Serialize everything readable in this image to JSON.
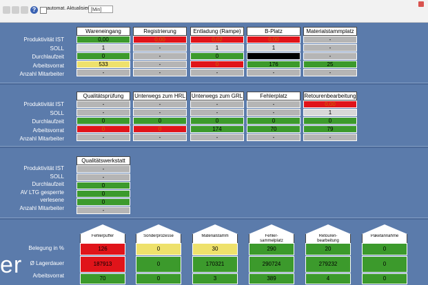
{
  "toolbar": {
    "auto_label": "automat. Aktualisierung",
    "interval_value": "[Min]"
  },
  "row_labels": {
    "section1": [
      "Produktivität IST",
      "SOLL",
      "Durchlaufzeit",
      "Arbeitsvorrat",
      "Anzahl Mitarbeiter"
    ],
    "section2": [
      "Produktivität IST",
      "SOLL",
      "Durchlaufzeit",
      "Arbeitsvorrat",
      "Anzahl Mitarbeiter"
    ],
    "section3": [
      "Produktivität IST",
      "SOLL",
      "Durchlaufzeit",
      "AV LTG gesperrte",
      "verlesene",
      "Anzahl Mitarbeiter"
    ],
    "section4": [
      "Belegung in %",
      "Ø Lagerdauer",
      "Arbeitsvorrat"
    ]
  },
  "section1": [
    {
      "title": "Wareneingang",
      "cells": [
        {
          "v": "0,00",
          "c": "green"
        },
        {
          "v": "1",
          "c": "lgray"
        },
        {
          "v": "0",
          "c": "green"
        },
        {
          "v": "533",
          "c": "yellow"
        },
        {
          "v": "-",
          "c": "gray"
        }
      ]
    },
    {
      "title": "Registrierung",
      "cells": [
        {
          "v": "0,00",
          "c": "red"
        },
        {
          "v": "-",
          "c": "gray"
        },
        {
          "v": "-",
          "c": "gray"
        },
        {
          "v": "-",
          "c": "gray"
        },
        {
          "v": "-",
          "c": "gray"
        }
      ]
    },
    {
      "title": "Entladung (Rampe)",
      "cells": [
        {
          "v": "0,02",
          "c": "red"
        },
        {
          "v": "1",
          "c": "lgray"
        },
        {
          "v": "0",
          "c": "green"
        },
        {
          "v": "0",
          "c": "red"
        },
        {
          "v": "-",
          "c": "gray"
        }
      ]
    },
    {
      "title": "B-Platz",
      "cells": [
        {
          "v": "0,00",
          "c": "red"
        },
        {
          "v": "1",
          "c": "lgray"
        },
        {
          "v": "",
          "c": "black"
        },
        {
          "v": "176",
          "c": "green"
        },
        {
          "v": "-",
          "c": "gray"
        }
      ]
    },
    {
      "title": "Materialstammplatz",
      "cells": [
        {
          "v": "-",
          "c": "gray"
        },
        {
          "v": "-",
          "c": "gray"
        },
        {
          "v": "-",
          "c": "gray"
        },
        {
          "v": "25",
          "c": "green"
        },
        {
          "v": "-",
          "c": "gray"
        }
      ]
    }
  ],
  "section2": [
    {
      "title": "Qualitätsprüfung",
      "cells": [
        {
          "v": "-",
          "c": "gray"
        },
        {
          "v": "-",
          "c": "gray"
        },
        {
          "v": "0",
          "c": "green"
        },
        {
          "v": "0",
          "c": "red"
        },
        {
          "v": "-",
          "c": "gray"
        }
      ]
    },
    {
      "title": "Unterwegs zum HRL",
      "cells": [
        {
          "v": "-",
          "c": "gray"
        },
        {
          "v": "-",
          "c": "gray"
        },
        {
          "v": "0",
          "c": "green"
        },
        {
          "v": "0",
          "c": "red"
        },
        {
          "v": "-",
          "c": "gray"
        }
      ]
    },
    {
      "title": "Unterwegs zum GRL",
      "cells": [
        {
          "v": "-",
          "c": "gray"
        },
        {
          "v": "-",
          "c": "gray"
        },
        {
          "v": "0",
          "c": "green"
        },
        {
          "v": "174",
          "c": "green"
        },
        {
          "v": "-",
          "c": "gray"
        }
      ]
    },
    {
      "title": "Fehlerplatz",
      "cells": [
        {
          "v": "-",
          "c": "gray"
        },
        {
          "v": "-",
          "c": "gray"
        },
        {
          "v": "0",
          "c": "green"
        },
        {
          "v": "70",
          "c": "green"
        },
        {
          "v": "-",
          "c": "gray"
        }
      ]
    },
    {
      "title": "Retourenbearbeitung",
      "cells": [
        {
          "v": "0,00",
          "c": "red"
        },
        {
          "v": "1",
          "c": "lgray"
        },
        {
          "v": "0",
          "c": "green"
        },
        {
          "v": "79",
          "c": "green"
        },
        {
          "v": "-",
          "c": "gray"
        }
      ]
    }
  ],
  "section3": [
    {
      "title": "Qualitätswerkstatt",
      "cells": [
        {
          "v": "-",
          "c": "gray"
        },
        {
          "v": "-",
          "c": "gray"
        },
        {
          "v": "0",
          "c": "green"
        },
        {
          "v": "0",
          "c": "green"
        },
        {
          "v": "0",
          "c": "green"
        },
        {
          "v": "-",
          "c": "gray"
        }
      ]
    }
  ],
  "section4": [
    {
      "title": "Fehlerpuffer",
      "cells": [
        {
          "v": "126",
          "c": "red"
        },
        {
          "v": "187913",
          "c": "red"
        },
        {
          "v": "70",
          "c": "green"
        }
      ]
    },
    {
      "title": "Sonderprozesse",
      "cells": [
        {
          "v": "0",
          "c": "yellow"
        },
        {
          "v": "0",
          "c": "green"
        },
        {
          "v": "0",
          "c": "green"
        }
      ]
    },
    {
      "title": "Materialstamm",
      "cells": [
        {
          "v": "30",
          "c": "yellow"
        },
        {
          "v": "170321",
          "c": "green"
        },
        {
          "v": "3",
          "c": "green"
        }
      ]
    },
    {
      "title": "Fehler-\nsammelplatz",
      "cells": [
        {
          "v": "290",
          "c": "green"
        },
        {
          "v": "290724",
          "c": "green"
        },
        {
          "v": "389",
          "c": "green"
        }
      ]
    },
    {
      "title": "Retouren-\nbearbeitung",
      "cells": [
        {
          "v": "20",
          "c": "green"
        },
        {
          "v": "279232",
          "c": "green"
        },
        {
          "v": "4",
          "c": "green"
        }
      ]
    },
    {
      "title": "Paketannahme",
      "cells": [
        {
          "v": "0",
          "c": "green"
        },
        {
          "v": "0",
          "c": "green"
        },
        {
          "v": "0",
          "c": "green"
        }
      ]
    }
  ],
  "big_text": "er"
}
